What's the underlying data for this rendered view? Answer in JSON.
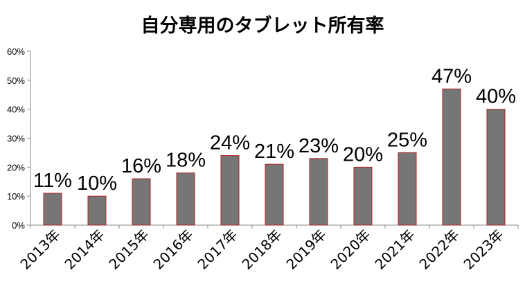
{
  "chart_data": {
    "type": "bar",
    "title": "自分専用のタブレット所有率",
    "xlabel": "",
    "ylabel": "",
    "categories": [
      "2013年",
      "2014年",
      "2015年",
      "2016年",
      "2017年",
      "2018年",
      "2019年",
      "2020年",
      "2021年",
      "2022年",
      "2023年"
    ],
    "values": [
      11,
      10,
      16,
      18,
      24,
      21,
      23,
      20,
      25,
      47,
      40
    ],
    "data_labels": [
      "11%",
      "10%",
      "16%",
      "18%",
      "24%",
      "21%",
      "23%",
      "20%",
      "25%",
      "47%",
      "40%"
    ],
    "yticks": [
      "0%",
      "10%",
      "20%",
      "30%",
      "40%",
      "50%",
      "60%"
    ],
    "ylim": [
      0,
      60
    ],
    "grid": false,
    "legend": "none",
    "colors": {
      "bar_fill": "#767676",
      "bar_stroke": "#b22222",
      "axis": "#888888"
    }
  }
}
